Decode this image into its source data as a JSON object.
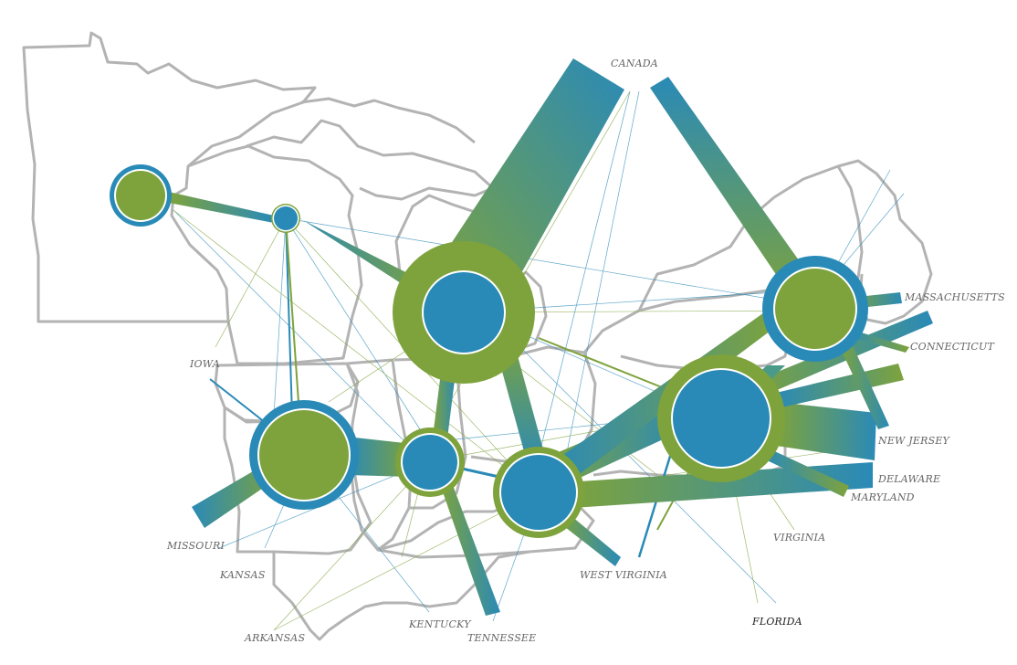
{
  "colors": {
    "green": "#7ea33c",
    "blue": "#2a8ab7",
    "outline": "#b3b3b3",
    "label": "#666666"
  },
  "labels": {
    "canada": "CANADA",
    "massachusetts": "MASSACHUSETTS",
    "connecticut": "CONNECTICUT",
    "iowa": "IOWA",
    "new_jersey": "NEW JERSEY",
    "delaware": "DELAWARE",
    "maryland": "MARYLAND",
    "virginia": "VIRGINIA",
    "missouri": "MISSOURI",
    "kansas": "KANSAS",
    "west_virginia": "WEST VIRGINIA",
    "florida": "FLORIDA",
    "kentucky": "KENTUCKY",
    "tennessee": "TENNESSEE",
    "arkansas": "ARKANSAS"
  }
}
